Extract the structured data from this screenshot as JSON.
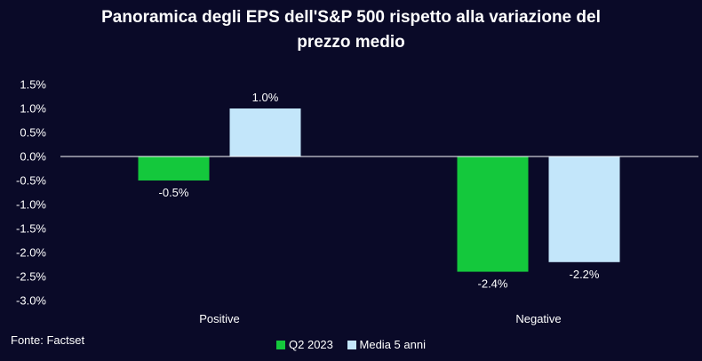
{
  "source": "Fonte: Factset",
  "chart_data": {
    "type": "bar",
    "title_lines": [
      "Panoramica degli EPS dell'S&P 500 rispetto alla variazione del",
      "prezzo medio"
    ],
    "categories": [
      "Positive",
      "Negative"
    ],
    "series": [
      {
        "name": "Q2 2023",
        "values": [
          -0.5,
          -2.4
        ],
        "labels": [
          "-0.5%",
          "-2.4%"
        ],
        "color": "#14c83c"
      },
      {
        "name": "Media 5 anni",
        "values": [
          1.0,
          -2.2
        ],
        "labels": [
          "1.0%",
          "-2.2%"
        ],
        "color": "#c3e6fa"
      }
    ],
    "ylim": [
      -3.0,
      1.5
    ],
    "yticks": [
      1.5,
      1.0,
      0.5,
      0.0,
      -0.5,
      -1.0,
      -1.5,
      -2.0,
      -2.5,
      -3.0
    ],
    "ytick_labels": [
      "1.5%",
      "1.0%",
      "0.5%",
      "0.0%",
      "-0.5%",
      "-1.0%",
      "-1.5%",
      "-2.0%",
      "-2.5%",
      "-3.0%"
    ],
    "grid": false,
    "legend": "bottom-center",
    "xlabel": "",
    "ylabel": ""
  }
}
